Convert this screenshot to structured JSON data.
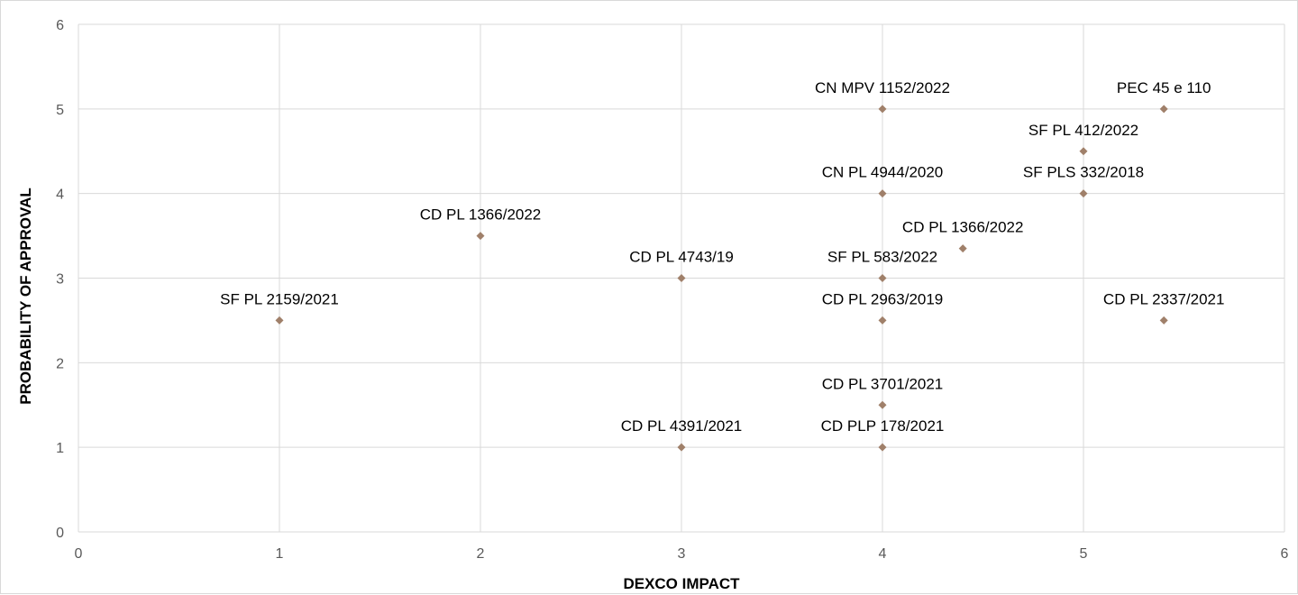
{
  "chart_data": {
    "type": "scatter",
    "title": "",
    "xlabel": "DEXCO IMPACT",
    "ylabel": "PROBABILITY OF APPROVAL",
    "xlim": [
      0,
      6
    ],
    "ylim": [
      0,
      6
    ],
    "x_ticks": [
      "0",
      "1",
      "2",
      "3",
      "4",
      "5",
      "6"
    ],
    "y_ticks": [
      "0",
      "1",
      "2",
      "3",
      "4",
      "5",
      "6"
    ],
    "grid": true,
    "legend": "none",
    "marker_color": "#a0806a",
    "points": [
      {
        "label": "SF PL 2159/2021",
        "x": 1,
        "y": 2.5
      },
      {
        "label": "CD PL 1366/2022",
        "x": 2,
        "y": 3.5
      },
      {
        "label": "CD PL 4743/19",
        "x": 3,
        "y": 3
      },
      {
        "label": "CD PL 4391/2021",
        "x": 3,
        "y": 1
      },
      {
        "label": "CN MPV 1152/2022",
        "x": 4,
        "y": 5
      },
      {
        "label": "CN PL 4944/2020",
        "x": 4,
        "y": 4
      },
      {
        "label": "SF PL 583/2022",
        "x": 4,
        "y": 3
      },
      {
        "label": "CD PL 2963/2019",
        "x": 4,
        "y": 2.5
      },
      {
        "label": "CD PL 3701/2021",
        "x": 4,
        "y": 1.5
      },
      {
        "label": "CD PLP 178/2021",
        "x": 4,
        "y": 1
      },
      {
        "label": "CD PL 1366/2022",
        "x": 4.4,
        "y": 3.35
      },
      {
        "label": "SF PL 412/2022",
        "x": 5,
        "y": 4.5
      },
      {
        "label": "SF PLS 332/2018",
        "x": 5,
        "y": 4
      },
      {
        "label": "PEC 45 e 110",
        "x": 5.4,
        "y": 5
      },
      {
        "label": "CD PL 2337/2021",
        "x": 5.4,
        "y": 2.5
      }
    ]
  }
}
